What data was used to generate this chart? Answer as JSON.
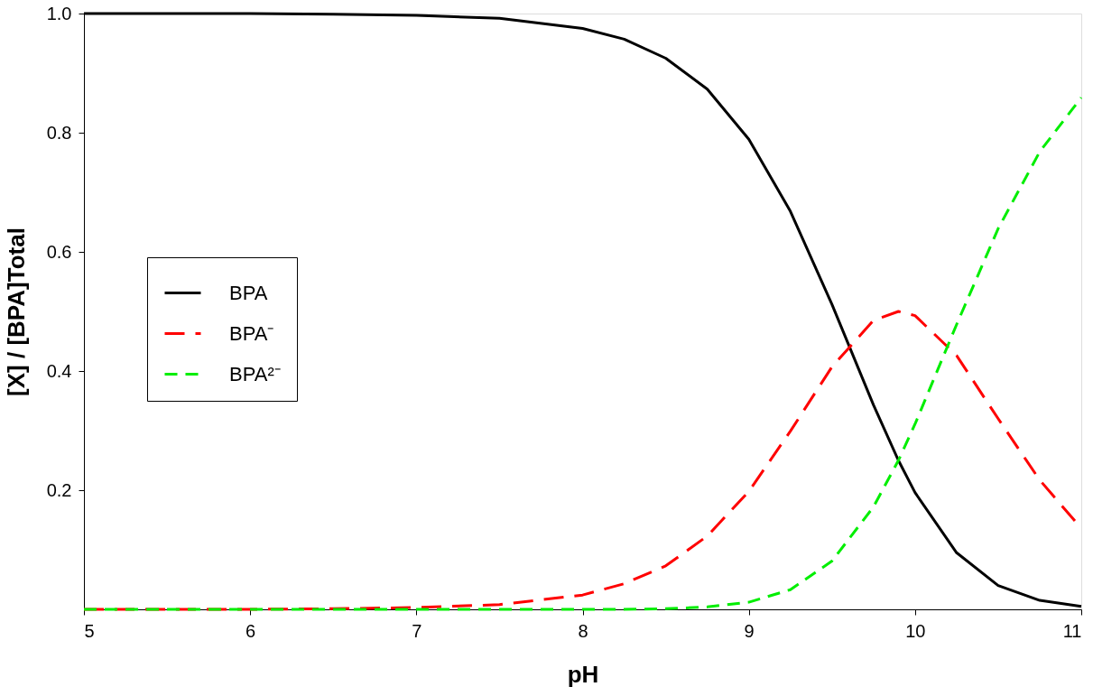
{
  "chart_data": {
    "type": "line",
    "xlabel": "pH",
    "ylabel": "[X] / [BPA]Total",
    "x": [
      5,
      5.5,
      6,
      6.5,
      7,
      7.5,
      8,
      8.25,
      8.5,
      8.75,
      9,
      9.25,
      9.5,
      9.75,
      9.9,
      10,
      10.25,
      10.5,
      10.75,
      11
    ],
    "series": [
      {
        "name": "BPA",
        "color": "#000000",
        "line_style": "solid",
        "values": [
          1.0,
          1.0,
          1.0,
          0.999,
          0.997,
          0.992,
          0.975,
          0.957,
          0.925,
          0.873,
          0.789,
          0.668,
          0.512,
          0.343,
          0.25,
          0.196,
          0.095,
          0.04,
          0.015,
          0.005
        ]
      },
      {
        "name": "BPA⁻",
        "color": "#ff0000",
        "line_style": "dashed",
        "values": [
          0.0,
          0.0,
          0.0,
          0.001,
          0.003,
          0.008,
          0.024,
          0.043,
          0.073,
          0.123,
          0.198,
          0.299,
          0.407,
          0.485,
          0.5,
          0.493,
          0.426,
          0.32,
          0.217,
          0.136
        ]
      },
      {
        "name": "BPA²⁻",
        "color": "#00ee00",
        "line_style": "dashed",
        "values": [
          0.0,
          0.0,
          0.0,
          0.0,
          0.0,
          0.0,
          0.0,
          0.0,
          0.001,
          0.004,
          0.012,
          0.033,
          0.081,
          0.172,
          0.25,
          0.311,
          0.478,
          0.639,
          0.768,
          0.859
        ]
      }
    ],
    "xlim": [
      5,
      11
    ],
    "xticks": [
      5,
      6,
      7,
      8,
      9,
      10,
      11
    ],
    "ylim": [
      0,
      1
    ],
    "yticks": [
      0.2,
      0.4,
      0.6,
      0.8,
      {
        "value": 1.0,
        "label": "1.0"
      }
    ],
    "grid": false,
    "legend": "left",
    "marker": "none"
  }
}
